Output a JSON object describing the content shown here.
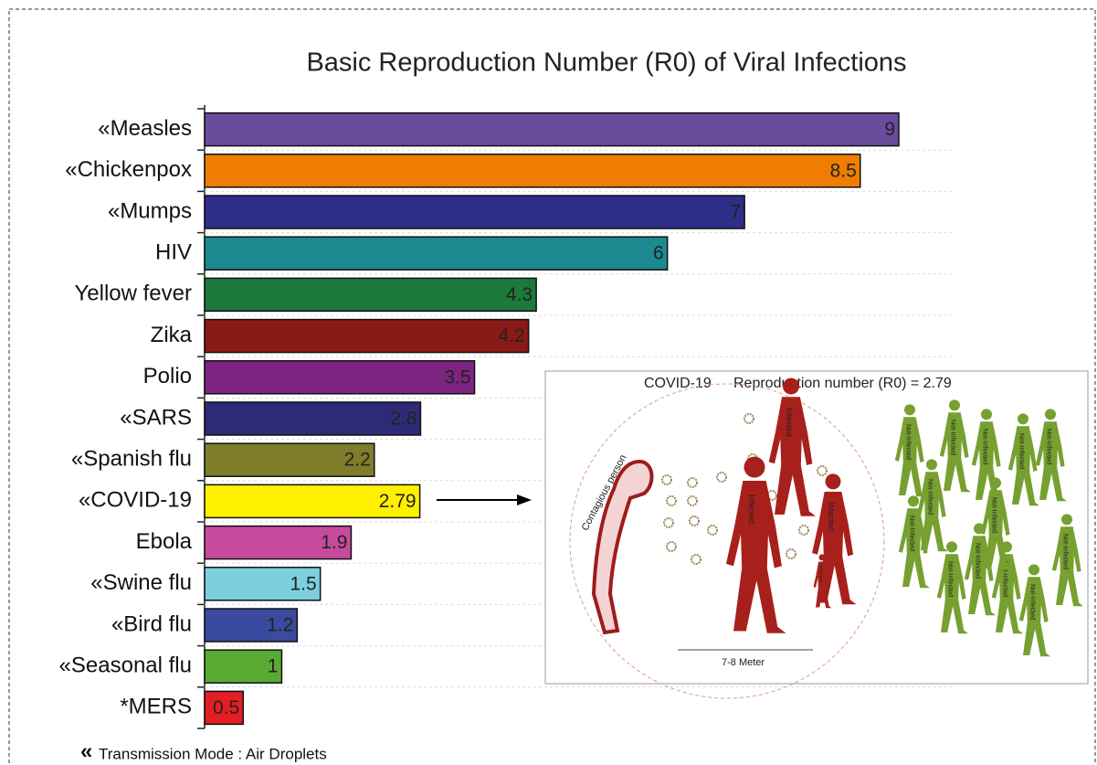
{
  "chart_data": {
    "type": "bar",
    "orientation": "horizontal",
    "title": "Basic Reproduction Number (R0) of Viral Infections",
    "categories": [
      "«Measles",
      "«Chickenpox",
      "«Mumps",
      "HIV",
      "Yellow fever",
      "Zika",
      "Polio",
      "«SARS",
      "«Spanish  flu",
      "«COVID-19",
      "Ebola",
      "«Swine  flu",
      "«Bird flu",
      "«Seasonal flu",
      "*MERS"
    ],
    "values": [
      9,
      8.5,
      7,
      6,
      4.3,
      4.2,
      3.5,
      2.8,
      2.2,
      2.79,
      1.9,
      1.5,
      1.2,
      1,
      0.5
    ],
    "colors": [
      "#6a4c9c",
      "#ef7d00",
      "#2e2d88",
      "#1b8a90",
      "#1b7a3a",
      "#8a1a16",
      "#7d2480",
      "#2d2b76",
      "#7f7d2a",
      "#fff000",
      "#c64b9d",
      "#7dcfe0",
      "#3a4a9e",
      "#5aab32",
      "#e31e24"
    ],
    "xlim": [
      0,
      9
    ],
    "footnote_symbol": "«",
    "footnote": "Transmission Mode : Air Droplets",
    "inset": {
      "title": "COVID-19",
      "subtitle": "Reproduction number (R0) = 2.79",
      "source_label": "Contagious person",
      "distance_label": "7-8 Meter",
      "infected_labels": [
        "Infected",
        "Infected",
        "Infected",
        "Infected"
      ],
      "not_infected_labels": [
        "Not-Infected",
        "Not-Infected",
        "Not-Infected",
        "Not-Infected",
        "Not-Infected",
        "Not-Infected",
        "Not-Infected",
        "Not-Infected",
        "Not-Infected",
        "Not-Infected",
        "Not-Infected",
        "Not-Infected",
        "Not-Infected"
      ]
    }
  }
}
